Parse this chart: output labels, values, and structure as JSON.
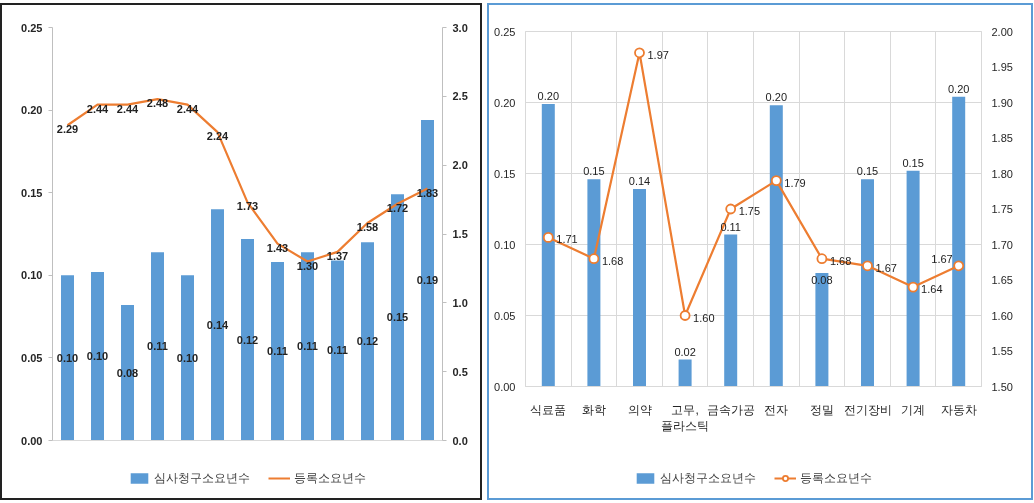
{
  "chart_data": [
    {
      "type": "bar",
      "categories": [
        null,
        null,
        null,
        null,
        null,
        null,
        null,
        null,
        null,
        null,
        null,
        null,
        null
      ],
      "series": [
        {
          "name": "심사청구소요년수",
          "color": "#5b9bd5",
          "values": [
            0.1,
            0.102,
            0.082,
            0.114,
            0.1,
            0.14,
            0.122,
            0.108,
            0.114,
            0.109,
            0.12,
            0.149,
            0.194
          ],
          "value_labels": [
            "0.10",
            "0.10",
            "0.08",
            "0.11",
            "0.10",
            "0.14",
            "0.12",
            "0.11",
            "0.11",
            "0.11",
            "0.12",
            "0.15",
            "0.19"
          ]
        },
        {
          "name": "등록소요년수",
          "type": "line",
          "axis": "y2",
          "color": "#ed7d31",
          "values": [
            2.29,
            2.44,
            2.44,
            2.48,
            2.44,
            2.24,
            1.73,
            1.43,
            1.3,
            1.37,
            1.58,
            1.72,
            1.83
          ],
          "value_labels": [
            "2.29",
            "2.44",
            "2.44",
            "2.48",
            "2.44",
            "2.24",
            "1.73",
            "1.43",
            "1.30",
            "1.37",
            "1.58",
            "1.72",
            "1.83"
          ]
        }
      ],
      "ylim": [
        0,
        0.25
      ],
      "yticks": [
        {
          "value": 0,
          "label": "0.00"
        },
        {
          "value": 0.05,
          "label": "0.05"
        },
        {
          "value": 0.1,
          "label": "0.10"
        },
        {
          "value": 0.15,
          "label": "0.15"
        },
        {
          "value": 0.2,
          "label": "0.20"
        },
        {
          "value": 0.25,
          "label": "0.25"
        }
      ],
      "y2lim": [
        0,
        3
      ],
      "y2ticks": [
        {
          "value": 0,
          "label": "0.0"
        },
        {
          "value": 0.5,
          "label": "0.5"
        },
        {
          "value": 1,
          "label": "1.0"
        },
        {
          "value": 1.5,
          "label": "1.5"
        },
        {
          "value": 2,
          "label": "2.0"
        },
        {
          "value": 2.5,
          "label": "2.5"
        },
        {
          "value": 3,
          "label": "3.0"
        }
      ],
      "legend": "bottom"
    },
    {
      "type": "bar",
      "categories": [
        "식료품",
        "화학",
        "의약",
        "고무, 플라스틱",
        "금속가공",
        "전자",
        "정밀",
        "전기장비",
        "기계",
        "자동차"
      ],
      "series": [
        {
          "name": "심사청구소요년수",
          "color": "#5b9bd5",
          "values": [
            0.199,
            0.146,
            0.139,
            0.019,
            0.107,
            0.198,
            0.08,
            0.146,
            0.152,
            0.204
          ],
          "value_labels": [
            "0.20",
            "0.15",
            "0.14",
            "0.02",
            "0.11",
            "0.20",
            "0.08",
            "0.15",
            "0.15",
            "0.20"
          ]
        },
        {
          "name": "등록소요년수",
          "type": "line",
          "axis": "y2",
          "color": "#ed7d31",
          "values": [
            1.71,
            1.68,
            1.97,
            1.6,
            1.75,
            1.79,
            1.68,
            1.67,
            1.64,
            1.67
          ],
          "value_labels": [
            "1.71",
            "1.68",
            "1.97",
            "1.60",
            "1.75",
            "1.79",
            "1.68",
            "1.67",
            "1.64",
            "1.67"
          ]
        }
      ],
      "ylim": [
        0,
        0.25
      ],
      "yticks": [
        {
          "value": 0,
          "label": "0.00"
        },
        {
          "value": 0.05,
          "label": "0.05"
        },
        {
          "value": 0.1,
          "label": "0.10"
        },
        {
          "value": 0.15,
          "label": "0.15"
        },
        {
          "value": 0.2,
          "label": "0.20"
        },
        {
          "value": 0.25,
          "label": "0.25"
        }
      ],
      "y2lim": [
        1.5,
        2
      ],
      "y2ticks": [
        {
          "value": 1.5,
          "label": "1.50"
        },
        {
          "value": 1.55,
          "label": "1.55"
        },
        {
          "value": 1.6,
          "label": "1.60"
        },
        {
          "value": 1.65,
          "label": "1.65"
        },
        {
          "value": 1.7,
          "label": "1.70"
        },
        {
          "value": 1.75,
          "label": "1.75"
        },
        {
          "value": 1.8,
          "label": "1.80"
        },
        {
          "value": 1.85,
          "label": "1.85"
        },
        {
          "value": 1.9,
          "label": "1.90"
        },
        {
          "value": 1.95,
          "label": "1.95"
        },
        {
          "value": 2,
          "label": "2.00"
        }
      ],
      "grid": true,
      "marker": "circle",
      "legend": "bottom"
    }
  ]
}
